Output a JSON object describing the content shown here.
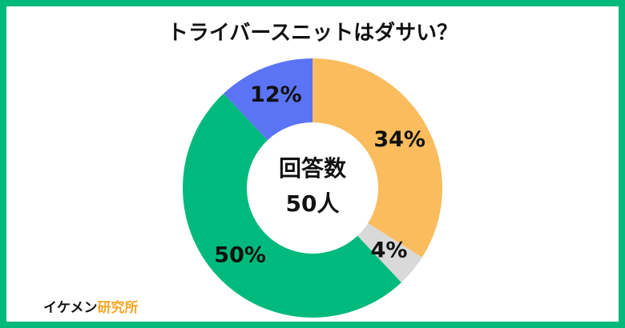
{
  "chart_data": {
    "type": "donut",
    "title": "トライバースニットはダサい？",
    "center_label": "回答数",
    "center_value": "50人",
    "values": [
      34,
      4,
      50,
      12
    ],
    "value_labels": [
      "34%",
      "4%",
      "50%",
      "12%"
    ],
    "colors": [
      "#fbbc5d",
      "#d9d9d9",
      "#00b97c",
      "#5b74f5"
    ],
    "watermark": {
      "black": "イケメン",
      "orange": "研究所"
    }
  }
}
